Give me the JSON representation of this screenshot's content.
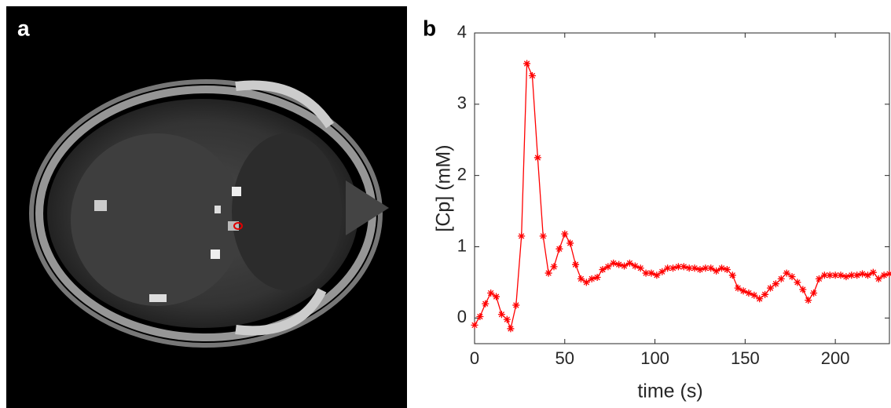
{
  "panel_labels": [
    "a",
    "b"
  ],
  "chart_data": {
    "type": "line",
    "xlabel": "time (s)",
    "ylabel": "[Cp] (mM)",
    "x": [
      0,
      3,
      6,
      9,
      12,
      15,
      18,
      20,
      23,
      26,
      29,
      32,
      35,
      38,
      41,
      44,
      47,
      50,
      53,
      56,
      59,
      62,
      65,
      68,
      71,
      74,
      77,
      80,
      83,
      86,
      89,
      92,
      95,
      98,
      101,
      104,
      107,
      110,
      113,
      116,
      119,
      122,
      125,
      128,
      131,
      134,
      137,
      140,
      143,
      146,
      149,
      152,
      155,
      158,
      161,
      164,
      167,
      170,
      173,
      176,
      179,
      182,
      185,
      188,
      191,
      194,
      197,
      200,
      203,
      206,
      209,
      212,
      215,
      218,
      221,
      224,
      227,
      230
    ],
    "series": [
      {
        "color": "#ff0000",
        "values": [
          -0.1,
          0.02,
          0.2,
          0.35,
          0.3,
          0.05,
          -0.02,
          -0.15,
          0.18,
          1.15,
          3.57,
          3.4,
          2.25,
          1.15,
          0.63,
          0.72,
          0.97,
          1.18,
          1.05,
          0.75,
          0.55,
          0.5,
          0.55,
          0.57,
          0.68,
          0.72,
          0.77,
          0.75,
          0.73,
          0.77,
          0.73,
          0.7,
          0.63,
          0.63,
          0.6,
          0.65,
          0.7,
          0.7,
          0.72,
          0.72,
          0.7,
          0.7,
          0.68,
          0.7,
          0.7,
          0.66,
          0.7,
          0.68,
          0.6,
          0.42,
          0.38,
          0.35,
          0.32,
          0.27,
          0.33,
          0.42,
          0.48,
          0.55,
          0.63,
          0.58,
          0.5,
          0.4,
          0.25,
          0.35,
          0.55,
          0.6,
          0.6,
          0.6,
          0.6,
          0.58,
          0.6,
          0.6,
          0.62,
          0.6,
          0.64,
          0.55,
          0.6,
          0.62
        ]
      }
    ],
    "xlim": [
      0,
      230
    ],
    "ylim": [
      -0.36,
      4
    ],
    "xticks": [
      0,
      50,
      100,
      150,
      200
    ],
    "yticks": [
      0,
      1,
      2,
      3,
      4
    ]
  }
}
